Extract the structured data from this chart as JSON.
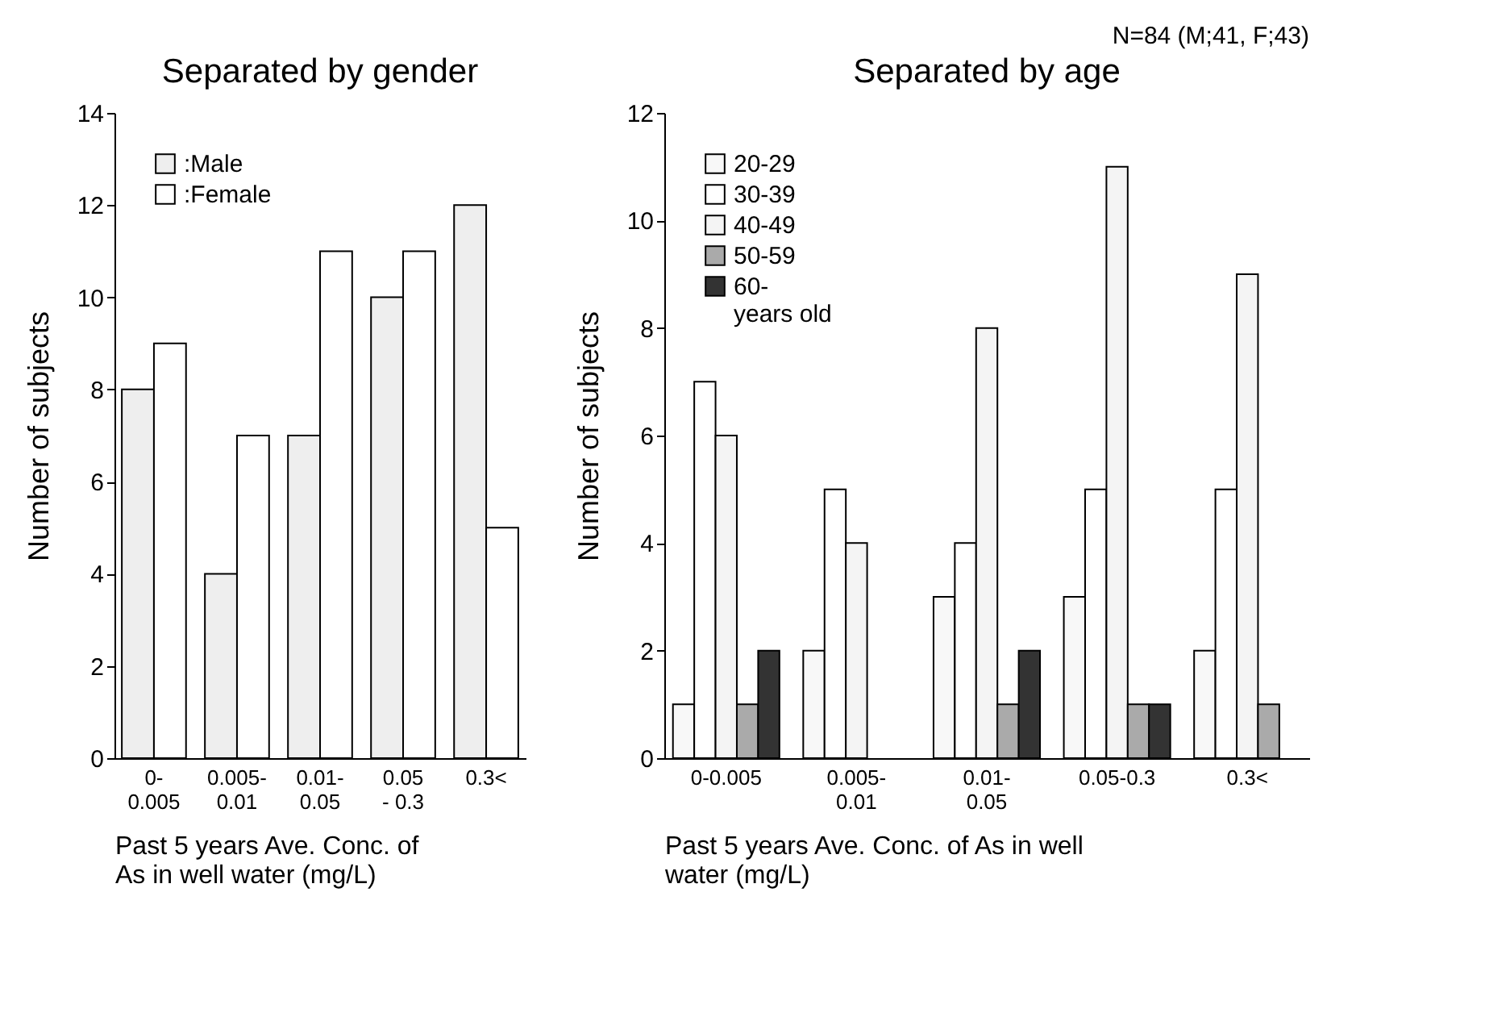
{
  "chart_data": [
    {
      "type": "bar",
      "title": "Separated by gender",
      "xlabel": "Past 5 years Ave. Conc. of\nAs in well water (mg/L)",
      "ylabel": "Number of subjects",
      "categories": [
        "0-\n0.005",
        "0.005-\n0.01",
        "0.01-\n0.05",
        "0.05\n- 0.3",
        "0.3<"
      ],
      "ylim": [
        0,
        14
      ],
      "yticks": [
        0,
        2,
        4,
        6,
        8,
        10,
        12,
        14
      ],
      "legend": "top left",
      "series": [
        {
          "name": ":Male",
          "color": "#eeeeee",
          "values": [
            8,
            4,
            7,
            10,
            12
          ]
        },
        {
          "name": ":Female",
          "color": "#ffffff",
          "values": [
            9,
            7,
            11,
            11,
            5
          ]
        }
      ]
    },
    {
      "type": "bar",
      "title": "Separated by age",
      "xlabel": "Past 5 years Ave. Conc. of As in well\nwater (mg/L)",
      "ylabel": "Number of subjects",
      "annotations": [
        "N=84 (M;41, F;43)"
      ],
      "categories": [
        "0-0.005",
        "0.005-\n0.01",
        "0.01-\n0.05",
        "0.05-0.3",
        "0.3<"
      ],
      "ylim": [
        0,
        12
      ],
      "yticks": [
        0,
        2,
        4,
        6,
        8,
        10,
        12
      ],
      "legend": "top left",
      "series": [
        {
          "name": "20-29",
          "color": "#f8f8f8",
          "values": [
            1,
            2,
            3,
            3,
            2
          ]
        },
        {
          "name": "30-39",
          "color": "#ffffff",
          "values": [
            7,
            5,
            4,
            5,
            5
          ]
        },
        {
          "name": "40-49",
          "color": "#f4f4f4",
          "values": [
            6,
            4,
            8,
            11,
            9
          ]
        },
        {
          "name": "50-59",
          "color": "#aaaaaa",
          "values": [
            1,
            0,
            1,
            1,
            1
          ]
        },
        {
          "name": "60-\nyears old",
          "color": "#333333",
          "values": [
            2,
            0,
            2,
            1,
            0
          ]
        }
      ]
    }
  ]
}
